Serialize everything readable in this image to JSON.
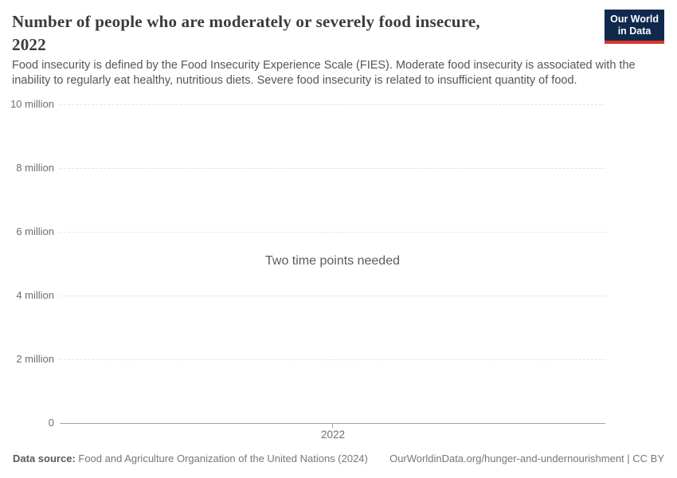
{
  "header": {
    "title": {
      "line1": "Number of people who are moderately or severely food insecure,",
      "line2": "2022"
    },
    "subtitle": "Food insecurity is defined by the Food Insecurity Experience Scale (FIES). Moderate food insecurity is associated with the inability to regularly eat healthy, nutritious diets. Severe food insecurity is related to insufficient quantity of food.",
    "logo": {
      "line1": "Our World",
      "line2": "in Data",
      "background": "#0f2a4d",
      "accent": "#e0352b"
    }
  },
  "chart_data": {
    "type": "line",
    "title": "Number of people who are moderately or severely food insecure, 2022",
    "message": "Two time points needed",
    "series": [],
    "x": [],
    "xticks": [
      "2022"
    ],
    "yticks": [
      {
        "value": 0,
        "label": "0"
      },
      {
        "value": 2000000,
        "label": "2 million"
      },
      {
        "value": 4000000,
        "label": "4 million"
      },
      {
        "value": 6000000,
        "label": "6 million"
      },
      {
        "value": 8000000,
        "label": "8 million"
      },
      {
        "value": 10000000,
        "label": "10 million"
      }
    ],
    "ylim": [
      0,
      10000000
    ],
    "grid": true,
    "legend": "none",
    "colors": {
      "gridline": "#e2e2e2",
      "axis": "#a3a3a3",
      "tick_label": "#6e6e6e"
    }
  },
  "footer": {
    "data_source_label": "Data source:",
    "data_source_value": "Food and Agriculture Organization of the United Nations (2024)",
    "attribution": "OurWorldinData.org/hunger-and-undernourishment | CC BY"
  }
}
